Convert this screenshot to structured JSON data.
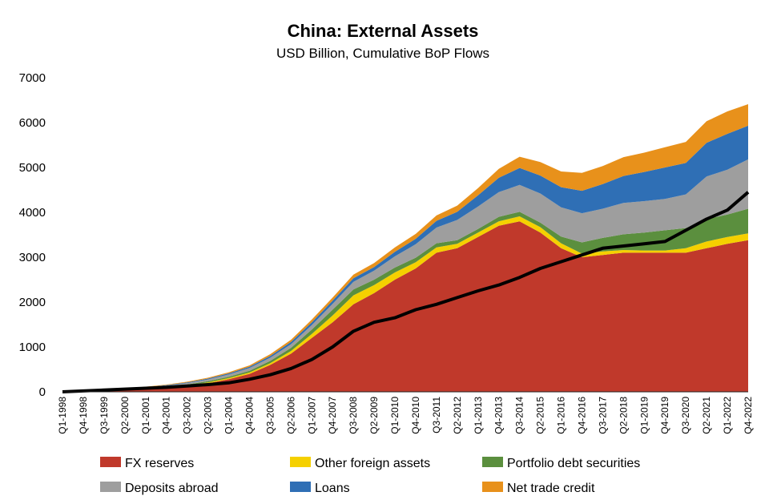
{
  "chart_data": {
    "type": "area",
    "title": "China: External Assets",
    "subtitle": "USD Billion, Cumulative BoP Flows",
    "xlabel": "",
    "ylabel": "",
    "ylim": [
      0,
      7000
    ],
    "yticks": [
      0,
      1000,
      2000,
      3000,
      4000,
      5000,
      6000,
      7000
    ],
    "x_tick_labels": [
      "Q1-1998",
      "Q4-1998",
      "Q3-1999",
      "Q2-2000",
      "Q1-2001",
      "Q4-2001",
      "Q3-2002",
      "Q2-2003",
      "Q1-2004",
      "Q4-2004",
      "Q3-2005",
      "Q2-2006",
      "Q1-2007",
      "Q4-2007",
      "Q3-2008",
      "Q2-2009",
      "Q1-2010",
      "Q4-2010",
      "Q3-2011",
      "Q2-2012",
      "Q1-2013",
      "Q4-2013",
      "Q3-2014",
      "Q2-2015",
      "Q1-2016",
      "Q4-2016",
      "Q3-2017",
      "Q2-2018",
      "Q1-2019",
      "Q4-2019",
      "Q3-2020",
      "Q2-2021",
      "Q1-2022",
      "Q4-2022"
    ],
    "stacked": true,
    "grid": false,
    "legend_position": "bottom",
    "x": [
      "Q1-1998",
      "Q4-1998",
      "Q3-1999",
      "Q2-2000",
      "Q1-2001",
      "Q4-2001",
      "Q3-2002",
      "Q2-2003",
      "Q1-2004",
      "Q4-2004",
      "Q3-2005",
      "Q2-2006",
      "Q1-2007",
      "Q4-2007",
      "Q3-2008",
      "Q2-2009",
      "Q1-2010",
      "Q4-2010",
      "Q3-2011",
      "Q2-2012",
      "Q1-2013",
      "Q4-2013",
      "Q3-2014",
      "Q2-2015",
      "Q1-2016",
      "Q4-2016",
      "Q3-2017",
      "Q2-2018",
      "Q1-2019",
      "Q4-2019",
      "Q3-2020",
      "Q2-2021",
      "Q1-2022",
      "Q4-2022"
    ],
    "series": [
      {
        "name": "FX reserves",
        "color": "#c0392b",
        "values": [
          0,
          10,
          20,
          40,
          60,
          90,
          130,
          190,
          280,
          400,
          600,
          850,
          1200,
          1550,
          1950,
          2200,
          2500,
          2750,
          3100,
          3200,
          3450,
          3700,
          3800,
          3550,
          3200,
          3000,
          3050,
          3100,
          3100,
          3100,
          3100,
          3200,
          3300,
          3380
        ]
      },
      {
        "name": "Other foreign assets",
        "color": "#f5d000",
        "values": [
          0,
          2,
          3,
          5,
          8,
          10,
          15,
          20,
          25,
          30,
          40,
          60,
          90,
          150,
          200,
          180,
          160,
          140,
          120,
          100,
          100,
          100,
          110,
          120,
          110,
          80,
          80,
          60,
          50,
          50,
          100,
          150,
          150,
          150
        ]
      },
      {
        "name": "Portfolio debt securities",
        "color": "#5b8f3e",
        "values": [
          0,
          2,
          3,
          5,
          10,
          15,
          20,
          25,
          30,
          40,
          50,
          70,
          100,
          130,
          130,
          120,
          110,
          100,
          90,
          80,
          80,
          100,
          100,
          100,
          150,
          250,
          300,
          350,
          400,
          450,
          450,
          500,
          500,
          550
        ]
      },
      {
        "name": "Deposits abroad",
        "color": "#9e9e9e",
        "values": [
          0,
          5,
          10,
          15,
          20,
          25,
          30,
          40,
          50,
          60,
          70,
          80,
          100,
          130,
          170,
          200,
          250,
          300,
          350,
          450,
          500,
          550,
          600,
          650,
          650,
          650,
          650,
          700,
          700,
          700,
          750,
          950,
          1000,
          1100
        ]
      },
      {
        "name": "Loans",
        "color": "#2f6fb5",
        "values": [
          0,
          2,
          4,
          6,
          8,
          10,
          15,
          20,
          25,
          30,
          40,
          50,
          60,
          70,
          80,
          80,
          100,
          120,
          150,
          180,
          250,
          320,
          380,
          400,
          450,
          500,
          550,
          600,
          650,
          700,
          700,
          750,
          800,
          750
        ]
      },
      {
        "name": "Net trade credit",
        "color": "#e8911b",
        "values": [
          0,
          2,
          3,
          5,
          8,
          10,
          15,
          20,
          25,
          30,
          40,
          50,
          60,
          70,
          80,
          90,
          100,
          110,
          120,
          140,
          160,
          200,
          250,
          300,
          350,
          400,
          400,
          420,
          430,
          450,
          470,
          480,
          500,
          480
        ]
      }
    ],
    "line_series": {
      "name": "",
      "color": "#000000",
      "values": [
        0,
        20,
        40,
        60,
        80,
        100,
        130,
        160,
        200,
        280,
        380,
        520,
        720,
        1000,
        1350,
        1550,
        1650,
        1830,
        1950,
        2100,
        2250,
        2380,
        2550,
        2750,
        2900,
        3050,
        3200,
        3250,
        3300,
        3350,
        3600,
        3850,
        4050,
        4450
      ]
    }
  }
}
